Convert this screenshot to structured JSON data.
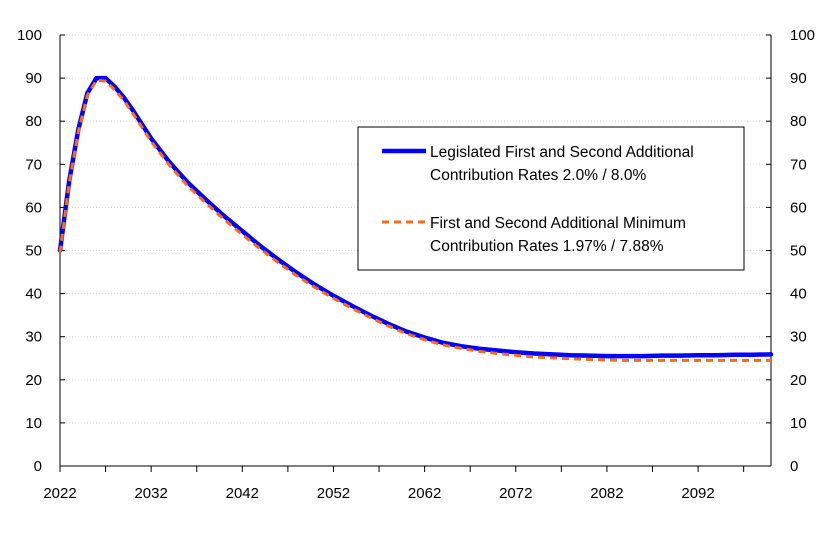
{
  "chart_data": {
    "type": "line",
    "title": "",
    "xlabel": "",
    "ylabel": "",
    "xlim": [
      2022,
      2100
    ],
    "ylim": [
      0,
      100
    ],
    "y_ticks": [
      0,
      10,
      20,
      30,
      40,
      50,
      60,
      70,
      80,
      90,
      100
    ],
    "x_ticks": [
      2022,
      2032,
      2042,
      2052,
      2062,
      2072,
      2082,
      2092
    ],
    "grid": "horizontal dotted",
    "legend_position": "upper-right inside plot",
    "series": [
      {
        "name": "Legislated First and Second Additional Contribution Rates 2.0% / 8.0%",
        "color": "#0000ff",
        "style": "solid",
        "x": [
          2022,
          2023,
          2024,
          2025,
          2026,
          2027,
          2028,
          2029,
          2030,
          2032,
          2034,
          2036,
          2038,
          2040,
          2042,
          2044,
          2046,
          2048,
          2050,
          2052,
          2054,
          2056,
          2058,
          2060,
          2062,
          2064,
          2066,
          2068,
          2070,
          2072,
          2074,
          2076,
          2078,
          2080,
          2082,
          2084,
          2086,
          2088,
          2090,
          2092,
          2094,
          2096,
          2098,
          2100
        ],
        "y": [
          50,
          66,
          78,
          86.5,
          90,
          90,
          88,
          85.5,
          82.5,
          76,
          70.5,
          65.8,
          61.8,
          58,
          54.5,
          51,
          47.8,
          44.8,
          42,
          39.5,
          37.2,
          35,
          33,
          31.2,
          29.8,
          28.6,
          27.8,
          27.2,
          26.8,
          26.4,
          26.1,
          25.9,
          25.7,
          25.6,
          25.5,
          25.5,
          25.5,
          25.6,
          25.6,
          25.7,
          25.7,
          25.8,
          25.8,
          25.9
        ]
      },
      {
        "name": "First and Second Additional Minimum Contribution Rates 1.97% / 7.88%",
        "color": "#ff6a13",
        "style": "dashed",
        "x": [
          2022,
          2023,
          2024,
          2025,
          2026,
          2027,
          2028,
          2029,
          2030,
          2032,
          2034,
          2036,
          2038,
          2040,
          2042,
          2044,
          2046,
          2048,
          2050,
          2052,
          2054,
          2056,
          2058,
          2060,
          2062,
          2064,
          2066,
          2068,
          2070,
          2072,
          2074,
          2076,
          2078,
          2080,
          2082,
          2084,
          2086,
          2088,
          2090,
          2092,
          2094,
          2096,
          2098,
          2100
        ],
        "y": [
          49.5,
          65.5,
          77.5,
          86,
          89.5,
          89.3,
          87.3,
          84.8,
          81.8,
          75.3,
          69.8,
          65,
          61,
          57.2,
          53.7,
          50.3,
          47.1,
          44.1,
          41.4,
          38.9,
          36.6,
          34.5,
          32.5,
          30.7,
          29.3,
          28.1,
          27.3,
          26.6,
          26.1,
          25.7,
          25.3,
          25.1,
          24.9,
          24.7,
          24.6,
          24.5,
          24.5,
          24.5,
          24.5,
          24.5,
          24.5,
          24.5,
          24.5,
          24.5
        ]
      }
    ],
    "legend": [
      {
        "line1": "Legislated First and Second Additional",
        "line2": "Contribution Rates 2.0% / 8.0%"
      },
      {
        "line1": "First and Second Additional Minimum",
        "line2": "Contribution Rates 1.97% / 7.88%"
      }
    ]
  }
}
